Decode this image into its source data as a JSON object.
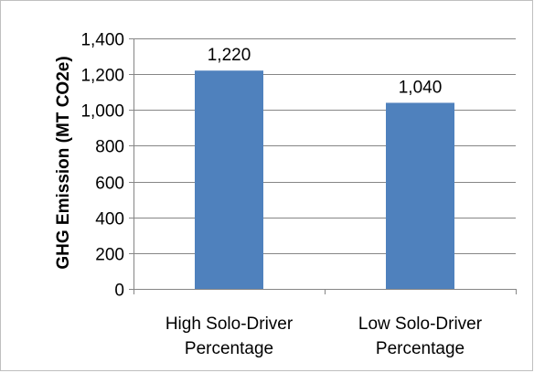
{
  "chart_data": {
    "type": "bar",
    "categories": [
      [
        "High Solo-Driver",
        "Percentage"
      ],
      [
        "Low Solo-Driver",
        "Percentage"
      ]
    ],
    "values": [
      1220,
      1040
    ],
    "data_labels": [
      "1,220",
      "1,040"
    ],
    "title": "",
    "xlabel": "",
    "ylabel": "GHG Emission (MT CO2e)",
    "ylim": [
      0,
      1400
    ],
    "yticks": [
      0,
      200,
      400,
      600,
      800,
      1000,
      1200,
      1400
    ],
    "ytick_labels": [
      "0",
      "200",
      "400",
      "600",
      "800",
      "1,000",
      "1,200",
      "1,400"
    ],
    "grid": true,
    "legend": "none",
    "colors": {
      "bar": "#4f81bd",
      "grid": "#868686",
      "axis": "#868686"
    }
  }
}
